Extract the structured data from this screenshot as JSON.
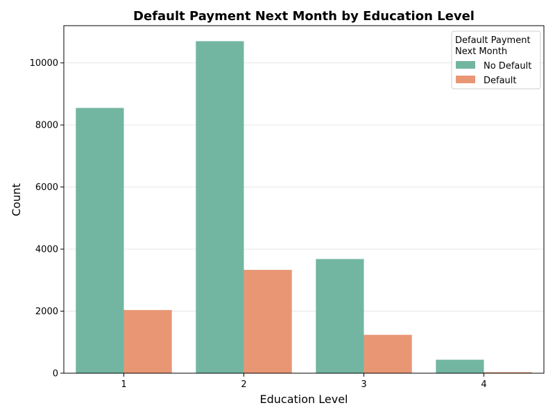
{
  "chart_data": {
    "type": "bar",
    "title": "Default Payment Next Month by Education Level",
    "xlabel": "Education Level",
    "ylabel": "Count",
    "categories": [
      "1",
      "2",
      "3",
      "4"
    ],
    "series": [
      {
        "name": "No Default",
        "color": "#72b6a1",
        "values": [
          8549,
          10700,
          3680,
          435
        ]
      },
      {
        "name": "Default",
        "color": "#e99675",
        "values": [
          2036,
          3330,
          1237,
          33
        ]
      }
    ],
    "ylim": [
      0,
      11200
    ],
    "yticks": [
      0,
      2000,
      4000,
      6000,
      8000,
      10000
    ],
    "ytick_labels": [
      "0",
      "2000",
      "4000",
      "6000",
      "8000",
      "10000"
    ],
    "grid": "horizontal",
    "legend": {
      "title": "Default Payment\nNext Month",
      "title_lines": [
        "Default Payment",
        "Next Month"
      ],
      "placement": "top-right"
    }
  }
}
